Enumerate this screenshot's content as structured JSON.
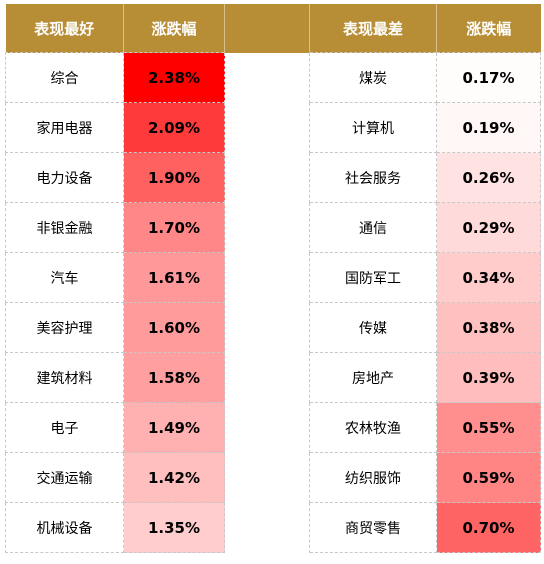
{
  "header": {
    "best_label": "表现最好",
    "best_change_label": "涨跌幅",
    "worst_label": "表现最差",
    "worst_change_label": "涨跌幅"
  },
  "colors": {
    "header_bg": "#b78d36",
    "header_text": "#ffffff",
    "heat_max": "#ff0000",
    "heat_min": "#ffffff"
  },
  "rows": [
    {
      "best_name": "综合",
      "best_change": "2.38%",
      "best_value": 2.38,
      "worst_name": "煤炭",
      "worst_change": "0.17%",
      "worst_value": 0.17
    },
    {
      "best_name": "家用电器",
      "best_change": "2.09%",
      "best_value": 2.09,
      "worst_name": "计算机",
      "worst_change": "0.19%",
      "worst_value": 0.19
    },
    {
      "best_name": "电力设备",
      "best_change": "1.90%",
      "best_value": 1.9,
      "worst_name": "社会服务",
      "worst_change": "0.26%",
      "worst_value": 0.26
    },
    {
      "best_name": "非银金融",
      "best_change": "1.70%",
      "best_value": 1.7,
      "worst_name": "通信",
      "worst_change": "0.29%",
      "worst_value": 0.29
    },
    {
      "best_name": "汽车",
      "best_change": "1.61%",
      "best_value": 1.61,
      "worst_name": "国防军工",
      "worst_change": "0.34%",
      "worst_value": 0.34
    },
    {
      "best_name": "美容护理",
      "best_change": "1.60%",
      "best_value": 1.6,
      "worst_name": "传媒",
      "worst_change": "0.38%",
      "worst_value": 0.38
    },
    {
      "best_name": "建筑材料",
      "best_change": "1.58%",
      "best_value": 1.58,
      "worst_name": "房地产",
      "worst_change": "0.39%",
      "worst_value": 0.39
    },
    {
      "best_name": "电子",
      "best_change": "1.49%",
      "best_value": 1.49,
      "worst_name": "农林牧渔",
      "worst_change": "0.55%",
      "worst_value": 0.55
    },
    {
      "best_name": "交通运输",
      "best_change": "1.42%",
      "best_value": 1.42,
      "worst_name": "纺织服饰",
      "worst_change": "0.59%",
      "worst_value": 0.59
    },
    {
      "best_name": "机械设备",
      "best_change": "1.35%",
      "best_value": 1.35,
      "worst_name": "商贸零售",
      "worst_change": "0.70%",
      "worst_value": 0.7
    }
  ]
}
